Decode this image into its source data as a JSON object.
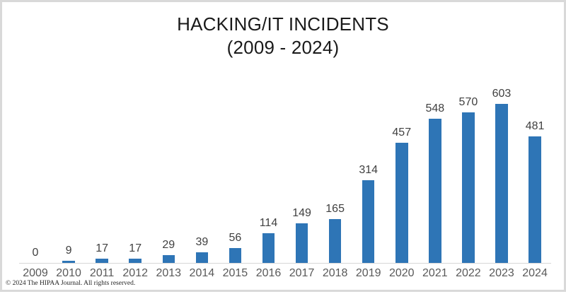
{
  "title": {
    "line1": "HACKING/IT INCIDENTS",
    "line2": "(2009 - 2024)"
  },
  "footer": {
    "copyright": "© 2024 The HIPAA Journal. All rights reserved."
  },
  "colors": {
    "bar": "#2E75B6",
    "value_label": "#404040",
    "tick_label": "#595959",
    "axis_line": "#d6d6d6",
    "frame_border": "#d9d9d9",
    "title_text": "#1a1a1a"
  },
  "chart_data": {
    "type": "bar",
    "title": "HACKING/IT INCIDENTS (2009 - 2024)",
    "categories": [
      "2009",
      "2010",
      "2011",
      "2012",
      "2013",
      "2014",
      "2015",
      "2016",
      "2017",
      "2018",
      "2019",
      "2020",
      "2021",
      "2022",
      "2023",
      "2024"
    ],
    "values": [
      0,
      9,
      17,
      17,
      29,
      39,
      56,
      114,
      149,
      165,
      314,
      457,
      548,
      570,
      603,
      481
    ],
    "xlabel": "",
    "ylabel": "",
    "ylim": [
      0,
      650
    ],
    "grid": false,
    "legend": false,
    "data_labels": true,
    "y_axis_visible": false
  }
}
